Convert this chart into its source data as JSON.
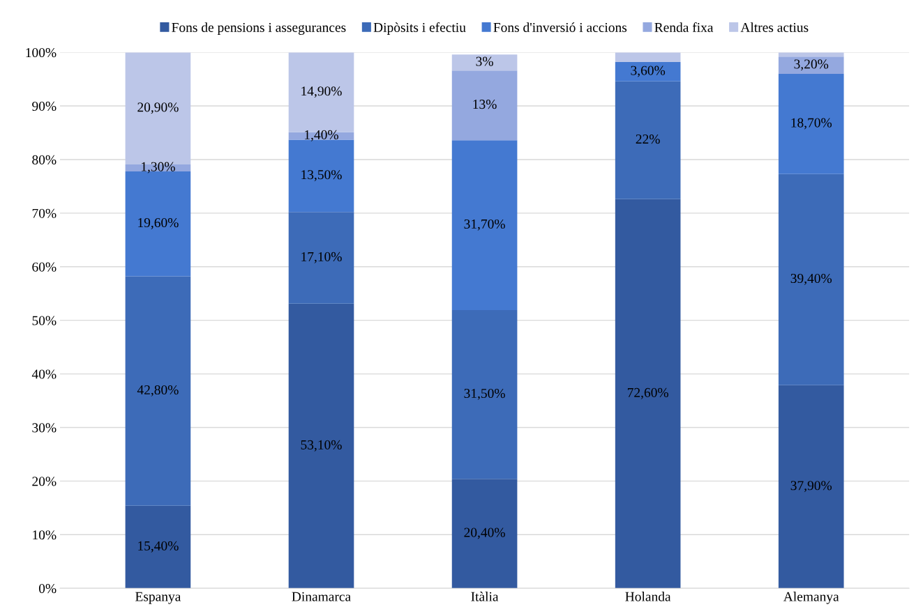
{
  "chart_data": {
    "type": "bar",
    "stacked": true,
    "categories": [
      "Espanya",
      "Dinamarca",
      "Itàlia",
      "Holanda",
      "Alemanya"
    ],
    "series": [
      {
        "name": "Fons de pensions i assegurances",
        "color": "#335aa0",
        "values": [
          15.4,
          53.1,
          20.4,
          72.6,
          37.9
        ],
        "value_labels": [
          "15,40%",
          "53,10%",
          "20,40%",
          "72,60%",
          "37,90%"
        ]
      },
      {
        "name": "Dipòsits i efectiu",
        "color": "#3d6bb8",
        "values": [
          42.8,
          17.1,
          31.5,
          22,
          39.4
        ],
        "value_labels": [
          "42,80%",
          "17,10%",
          "31,50%",
          "22%",
          "39,40%"
        ]
      },
      {
        "name": "Fons d'inversió i accions",
        "color": "#4479d1",
        "values": [
          19.6,
          13.5,
          31.7,
          3.6,
          18.7
        ],
        "value_labels": [
          "19,60%",
          "13,50%",
          "31,70%",
          "3,60%",
          "18,70%"
        ]
      },
      {
        "name": "Renda fixa",
        "color": "#94a8df",
        "values": [
          1.3,
          1.4,
          13,
          null,
          3.2
        ],
        "value_labels": [
          "1,30%",
          "1,40%",
          "13%",
          null,
          "3,20%"
        ]
      },
      {
        "name": "Altres actius",
        "color": "#bcc6e8",
        "values": [
          20.9,
          14.9,
          3,
          1.8,
          0.8
        ],
        "value_labels": [
          "20,90%",
          "14,90%",
          "3%",
          null,
          null
        ]
      }
    ],
    "ylim": [
      0,
      100
    ],
    "yticks": [
      {
        "value": 0,
        "label": "0%"
      },
      {
        "value": 10,
        "label": "10%"
      },
      {
        "value": 20,
        "label": "20%"
      },
      {
        "value": 30,
        "label": "30%"
      },
      {
        "value": 40,
        "label": "40%"
      },
      {
        "value": 50,
        "label": "50%"
      },
      {
        "value": 60,
        "label": "60%"
      },
      {
        "value": 70,
        "label": "70%"
      },
      {
        "value": 80,
        "label": "80%"
      },
      {
        "value": 90,
        "label": "90%"
      },
      {
        "value": 100,
        "label": "100%"
      }
    ],
    "grid": "y",
    "legend": "top"
  }
}
